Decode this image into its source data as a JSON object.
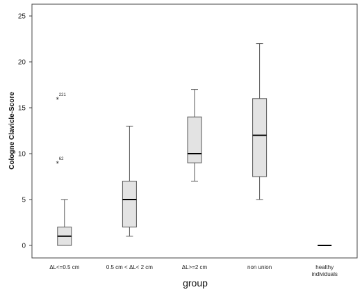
{
  "chart_data": {
    "type": "box",
    "xlabel": "group",
    "ylabel": "Cologne Clavicle-Score",
    "ylim": [
      -1.5,
      26
    ],
    "yticks": [
      0,
      5,
      10,
      15,
      20,
      25
    ],
    "grid": false,
    "colors": {
      "box_fill": "#e3e3e3",
      "stroke": "#555555",
      "median": "#000000"
    },
    "groups": [
      {
        "label": [
          "ΔL<=0.5 cm"
        ],
        "min": 0,
        "q1": 0,
        "median": 1,
        "q3": 2,
        "max": 5,
        "outliers": [
          {
            "value": 16,
            "label": "221"
          },
          {
            "value": 9,
            "label": "62"
          }
        ]
      },
      {
        "label": [
          "0.5 cm < ΔL< 2 cm"
        ],
        "min": 1,
        "q1": 2,
        "median": 5,
        "q3": 7,
        "max": 13,
        "outliers": []
      },
      {
        "label": [
          "ΔL>=2 cm"
        ],
        "min": 7,
        "q1": 9,
        "median": 10,
        "q3": 14,
        "max": 17,
        "outliers": []
      },
      {
        "label": [
          "non union"
        ],
        "min": 5,
        "q1": 7.5,
        "median": 12,
        "q3": 16,
        "max": 22,
        "outliers": []
      },
      {
        "label": [
          "healthy",
          "individuals"
        ],
        "min": 0,
        "q1": 0,
        "median": 0,
        "q3": 0,
        "max": 0,
        "outliers": []
      }
    ]
  }
}
